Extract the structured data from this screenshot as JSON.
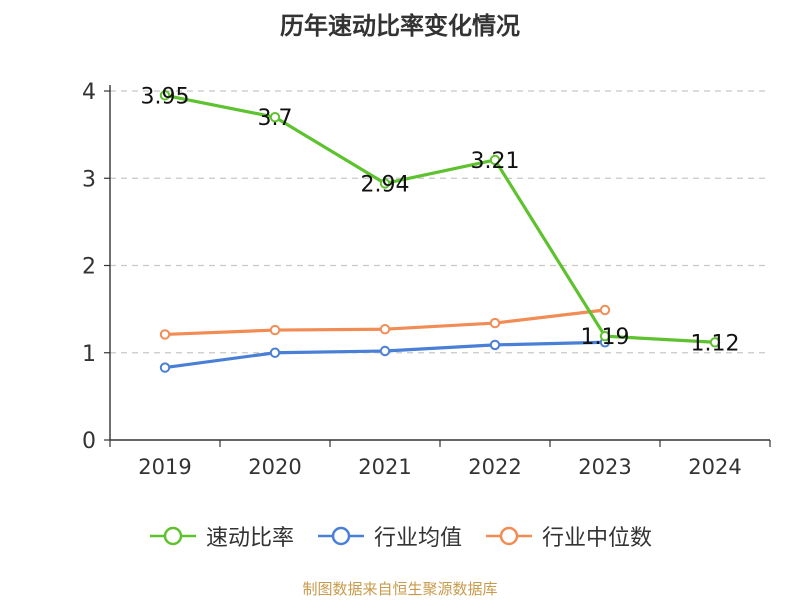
{
  "chart_data": {
    "type": "line",
    "title": "历年速动比率变化情况",
    "categories": [
      "2019",
      "2020",
      "2021",
      "2022",
      "2023",
      "2024"
    ],
    "y_ticks": [
      "0",
      "1",
      "2",
      "3",
      "4"
    ],
    "ylim": [
      0,
      4
    ],
    "grid": true,
    "legend_position": "bottom",
    "series": [
      {
        "name": "速动比率",
        "color": "#5ec22f",
        "values": [
          3.95,
          3.7,
          2.94,
          3.21,
          1.19,
          1.12
        ],
        "labels": [
          "3.95",
          "3.7",
          "2.94",
          "3.21",
          "1.19",
          "1.12"
        ]
      },
      {
        "name": "行业均值",
        "color": "#4a7fd6",
        "values": [
          0.83,
          1.0,
          1.02,
          1.09,
          1.12,
          null
        ]
      },
      {
        "name": "行业中位数",
        "color": "#f28c55",
        "values": [
          1.21,
          1.26,
          1.27,
          1.34,
          1.49,
          null
        ]
      }
    ]
  },
  "source": "制图数据来自恒生聚源数据库"
}
